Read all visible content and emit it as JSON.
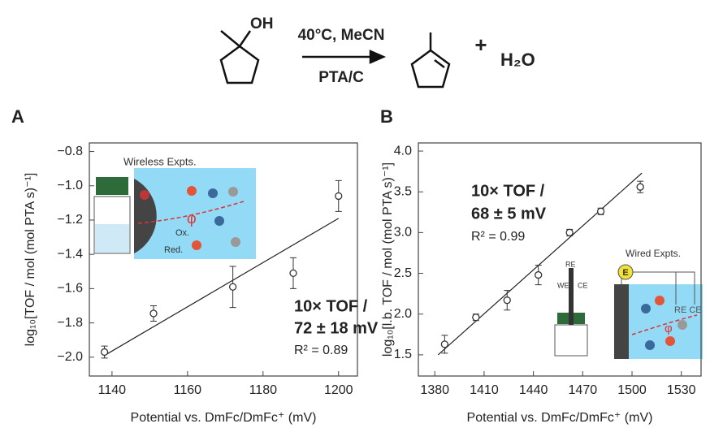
{
  "scheme": {
    "oh": "OH",
    "conditions": "40°C, MeCN",
    "catalyst": "PTA/C",
    "plus": "+",
    "product2": "H₂O"
  },
  "chart_data": [
    {
      "type": "scatter",
      "panel": "A",
      "x_label": "Potential vs. DmFc/DmFc⁺ (mV)",
      "y_label": "log₁₀[TOF / mol (mol PTA s)⁻¹]",
      "x": [
        1138,
        1151,
        1172,
        1188,
        1200
      ],
      "series": [
        {
          "values": [
            -1.97,
            -1.745,
            -1.59,
            -1.51,
            -1.06
          ],
          "errors": [
            0.035,
            0.045,
            0.12,
            0.09,
            0.09
          ],
          "color": "#333333"
        }
      ],
      "fit": {
        "x": [
          1138,
          1200
        ],
        "y": [
          -1.99,
          -1.19
        ]
      },
      "xlim": [
        1134,
        1205
      ],
      "ylim": [
        -2.11,
        -0.75
      ],
      "xticks": [
        1140,
        1160,
        1180,
        1200
      ],
      "yticks": [
        {
          "value": -0.8,
          "label": "−0.8"
        },
        {
          "value": -1.0,
          "label": "−1.0"
        },
        {
          "value": -1.2,
          "label": "−1.2"
        },
        {
          "value": -1.4,
          "label": "−1.4"
        },
        {
          "value": -1.6,
          "label": "−1.6"
        },
        {
          "value": -1.8,
          "label": "−1.8"
        },
        {
          "value": -2.0,
          "label": "−2.0"
        }
      ],
      "annotations": [
        "10× TOF /",
        "72 ± 18 mV",
        "R² = 0.89"
      ],
      "inset": {
        "title": "Wireless Expts.",
        "phi": "φ",
        "ox": "Ox.",
        "red": "Red."
      }
    },
    {
      "type": "scatter",
      "panel": "B",
      "x_label": "Potential vs. DmFc/DmFc⁺ (mV)",
      "y_label": "log₁₀[l.b. TOF / mol (mol PTA s)⁻¹]",
      "x": [
        1386,
        1405,
        1424,
        1443,
        1462,
        1481,
        1505
      ],
      "series": [
        {
          "values": [
            1.63,
            1.96,
            2.17,
            2.48,
            3.0,
            3.26,
            3.56
          ],
          "errors": [
            0.11,
            0.04,
            0.12,
            0.12,
            0.04,
            0.04,
            0.07
          ],
          "color": "#333333"
        }
      ],
      "fit": {
        "x": [
          1382,
          1506
        ],
        "y": [
          1.5,
          3.73
        ]
      },
      "xlim": [
        1370,
        1542
      ],
      "ylim": [
        1.24,
        4.1
      ],
      "xticks": [
        1380,
        1410,
        1440,
        1470,
        1500,
        1530
      ],
      "yticks": [
        1.5,
        {
          "value": 2.0,
          "label": "2.0"
        },
        2.5,
        {
          "value": 3.0,
          "label": "3.0"
        },
        3.5,
        {
          "value": 4.0,
          "label": "4.0"
        }
      ],
      "annotations": [
        "10× TOF /",
        "68 ± 5 mV",
        "R² = 0.99"
      ],
      "inset": {
        "title": "Wired Expts.",
        "e": "E",
        "re": "RE",
        "we": "WE",
        "ce": "CE",
        "rece": "RE CE",
        "phi": "φ"
      }
    }
  ]
}
